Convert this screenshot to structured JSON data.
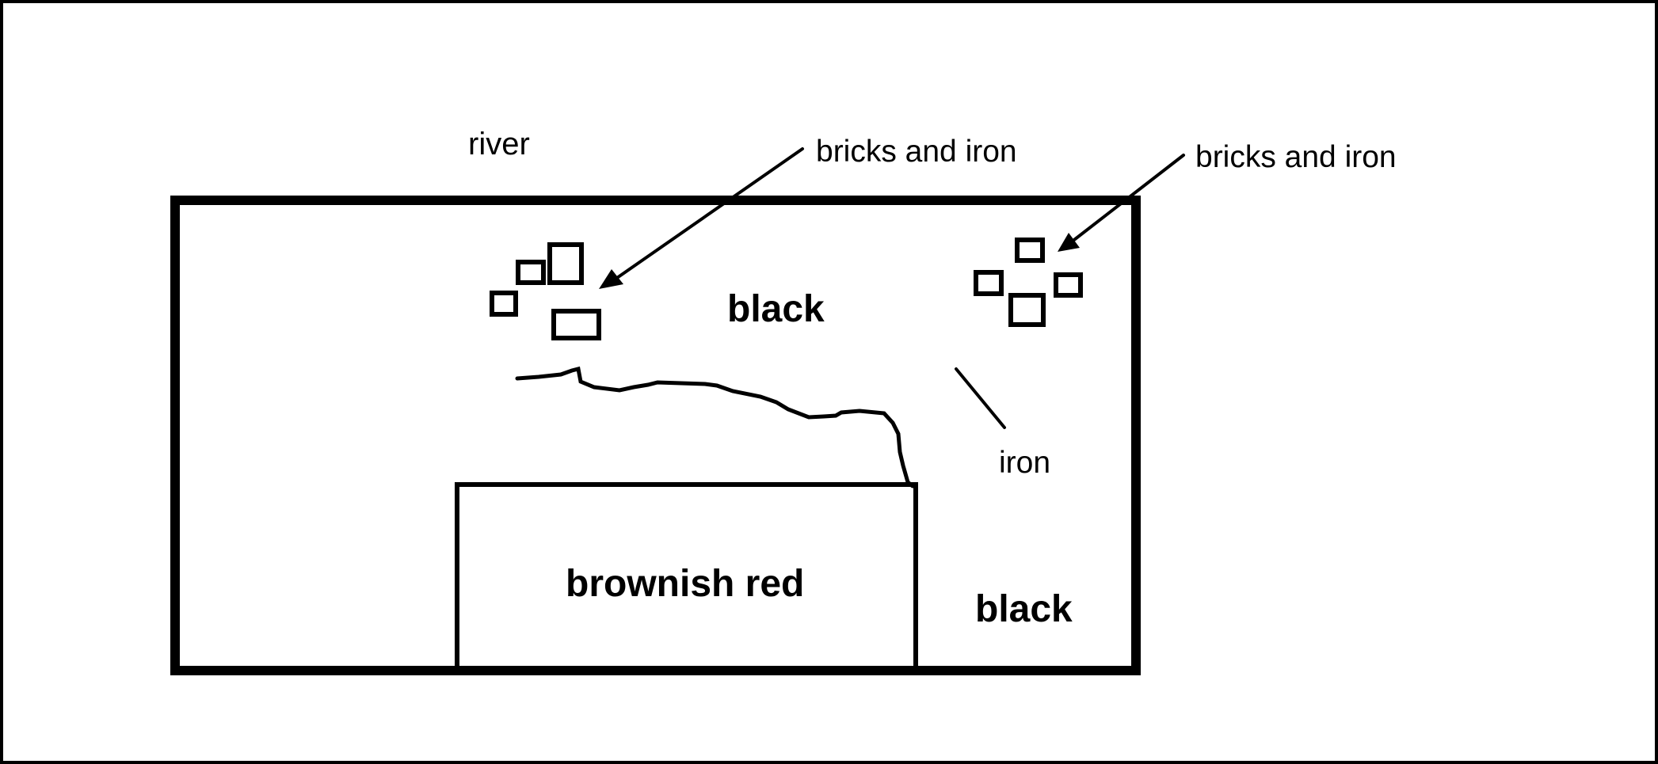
{
  "labels": {
    "river": "river",
    "bricks_and_iron_left": "bricks and iron",
    "bricks_and_iron_right": "bricks and iron",
    "black_top": "black",
    "iron": "iron",
    "brownish_red": "brownish red",
    "black_bottom": "black"
  },
  "colors": {
    "ink": "#000000",
    "background": "#ffffff"
  }
}
